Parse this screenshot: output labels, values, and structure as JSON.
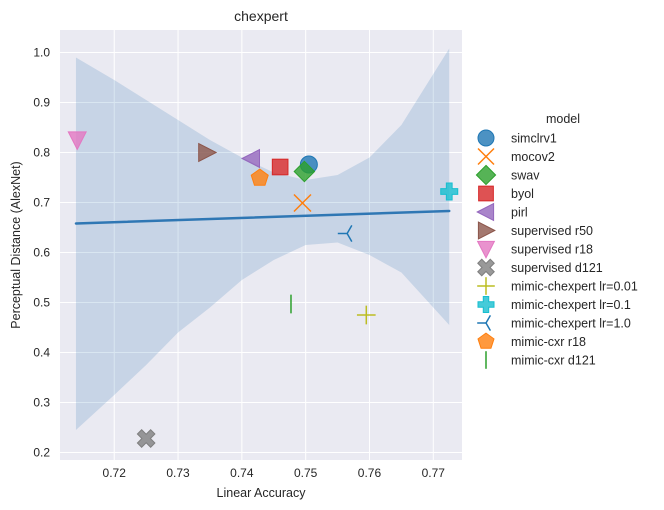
{
  "chart_data": {
    "type": "scatter",
    "title": "chexpert",
    "xlabel": "Linear Accuracy",
    "ylabel": "Perceptual Distance (AlexNet)",
    "xlim": [
      0.7115,
      0.7745
    ],
    "ylim": [
      0.185,
      1.045
    ],
    "xticks": [
      0.72,
      0.73,
      0.74,
      0.75,
      0.76,
      0.77
    ],
    "xtick_labels": [
      "0.72",
      "0.73",
      "0.74",
      "0.75",
      "0.76",
      "0.77"
    ],
    "yticks": [
      0.2,
      0.3,
      0.4,
      0.5,
      0.6,
      0.7,
      0.8,
      0.9,
      1.0
    ],
    "ytick_labels": [
      "0.2",
      "0.3",
      "0.4",
      "0.5",
      "0.6",
      "0.7",
      "0.8",
      "0.9",
      "1.0"
    ],
    "grid": true,
    "legend_title": "model",
    "legend_position": "right",
    "regression": {
      "color": "#2f77b4",
      "x": [
        0.714,
        0.7725
      ],
      "y": [
        0.658,
        0.683
      ],
      "ci_upper": [
        [
          0.714,
          0.99
        ],
        [
          0.72,
          0.945
        ],
        [
          0.725,
          0.905
        ],
        [
          0.73,
          0.865
        ],
        [
          0.735,
          0.825
        ],
        [
          0.74,
          0.79
        ],
        [
          0.745,
          0.76
        ],
        [
          0.75,
          0.745
        ],
        [
          0.755,
          0.755
        ],
        [
          0.76,
          0.79
        ],
        [
          0.765,
          0.855
        ],
        [
          0.7725,
          1.008
        ]
      ],
      "ci_lower": [
        [
          0.714,
          0.245
        ],
        [
          0.72,
          0.315
        ],
        [
          0.725,
          0.375
        ],
        [
          0.73,
          0.44
        ],
        [
          0.735,
          0.49
        ],
        [
          0.74,
          0.545
        ],
        [
          0.745,
          0.585
        ],
        [
          0.75,
          0.615
        ],
        [
          0.755,
          0.62
        ],
        [
          0.76,
          0.595
        ],
        [
          0.765,
          0.56
        ],
        [
          0.7725,
          0.455
        ]
      ]
    },
    "series": [
      {
        "name": "simclrv1",
        "marker": "circle",
        "color": "#1f77b4",
        "x": 0.7505,
        "y": 0.776
      },
      {
        "name": "mocov2",
        "marker": "x",
        "color": "#ff7f0e",
        "x": 0.7495,
        "y": 0.699
      },
      {
        "name": "swav",
        "marker": "diamond",
        "color": "#2ca02c",
        "x": 0.7498,
        "y": 0.762
      },
      {
        "name": "byol",
        "marker": "square",
        "color": "#d62728",
        "x": 0.746,
        "y": 0.771
      },
      {
        "name": "pirl",
        "marker": "triangle-left",
        "color": "#9467bd",
        "x": 0.7415,
        "y": 0.788
      },
      {
        "name": "supervised r50",
        "marker": "triangle-right",
        "color": "#8c564b",
        "x": 0.7345,
        "y": 0.8
      },
      {
        "name": "supervised r18",
        "marker": "triangle-down",
        "color": "#e377c2",
        "x": 0.7142,
        "y": 0.825
      },
      {
        "name": "supervised d121",
        "marker": "x-filled",
        "color": "#7f7f7f",
        "x": 0.725,
        "y": 0.228
      },
      {
        "name": "mimic-chexpert lr=0.01",
        "marker": "plus",
        "color": "#bcbd22",
        "x": 0.7595,
        "y": 0.475
      },
      {
        "name": "mimic-chexpert lr=0.1",
        "marker": "plus-filled",
        "color": "#17becf",
        "x": 0.7725,
        "y": 0.722
      },
      {
        "name": "mimic-chexpert lr=1.0",
        "marker": "tri-left",
        "color": "#1f77b4",
        "x": 0.7565,
        "y": 0.638
      },
      {
        "name": "mimic-cxr r18",
        "marker": "pentagon",
        "color": "#ff7f0e",
        "x": 0.7428,
        "y": 0.749
      },
      {
        "name": "mimic-cxr d121",
        "marker": "vline",
        "color": "#2ca02c",
        "x": 0.7477,
        "y": 0.497
      }
    ]
  }
}
